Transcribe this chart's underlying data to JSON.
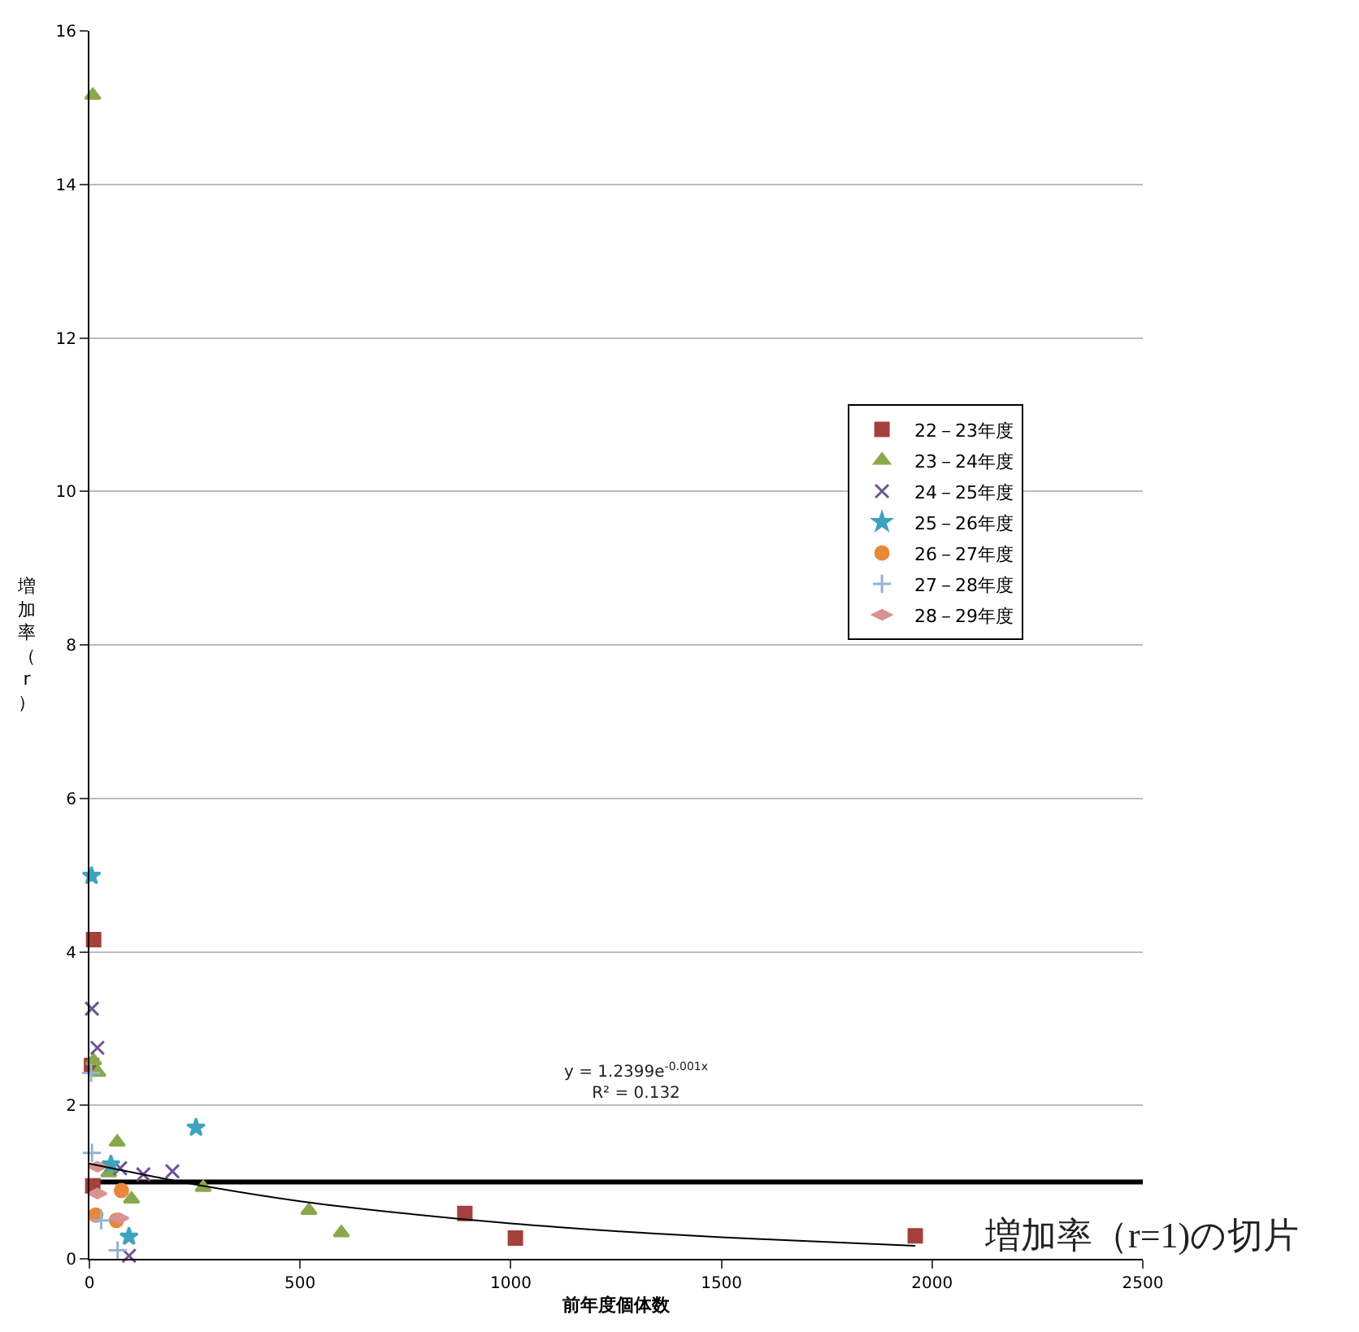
{
  "chart_data": {
    "type": "scatter",
    "xlabel": "前年度個体数",
    "ylabel": "増加率（r）",
    "xlim": [
      0,
      2500
    ],
    "xticks": [
      0,
      500,
      1000,
      1500,
      2000,
      2500
    ],
    "ylim": [
      0,
      16
    ],
    "yticks": [
      0,
      2,
      4,
      6,
      8,
      10,
      12,
      14,
      16
    ],
    "grid": "y",
    "legend": "right",
    "series": [
      {
        "name": "22－23年度",
        "color": "#a5403d",
        "marker": "square",
        "x": [
          10,
          5,
          8,
          891,
          1011,
          1960
        ],
        "values": [
          4.16,
          2.52,
          0.95,
          0.59,
          0.27,
          0.3
        ]
      },
      {
        "name": "23－24年度",
        "color": "#8aa84b",
        "marker": "triangle",
        "x": [
          8,
          10,
          20,
          66,
          46,
          100,
          270,
          521,
          598
        ],
        "values": [
          15.16,
          2.58,
          2.43,
          1.52,
          1.12,
          0.78,
          0.93,
          0.63,
          0.34
        ]
      },
      {
        "name": "24－25年度",
        "color": "#6e5493",
        "marker": "cross",
        "x": [
          6,
          19,
          73,
          128,
          197,
          94
        ],
        "values": [
          3.26,
          2.75,
          1.18,
          1.1,
          1.14,
          0.04
        ]
      },
      {
        "name": "25－26年度",
        "color": "#3ea3bd",
        "marker": "star",
        "x": [
          5,
          253,
          51,
          94
        ],
        "values": [
          4.99,
          1.71,
          1.23,
          0.29
        ]
      },
      {
        "name": "26－27年度",
        "color": "#e8883a",
        "marker": "circle",
        "x": [
          76,
          15,
          64
        ],
        "values": [
          0.89,
          0.57,
          0.5
        ]
      },
      {
        "name": "27－28年度",
        "color": "#94b2d6",
        "marker": "plus",
        "x": [
          6,
          4,
          28,
          67
        ],
        "values": [
          1.38,
          2.42,
          0.5,
          0.11
        ]
      },
      {
        "name": "28－29年度",
        "color": "#d9928f",
        "marker": "diamond",
        "x": [
          19,
          19,
          71
        ],
        "values": [
          1.2,
          0.85,
          0.53
        ]
      },
      {
        "type": "line",
        "color": "#000000",
        "marker": "none",
        "x": [
          0,
          250,
          500,
          750,
          1000,
          1250,
          1500,
          1750,
          1960
        ],
        "values": [
          1.24,
          0.97,
          0.75,
          0.59,
          0.46,
          0.36,
          0.28,
          0.22,
          0.17
        ]
      }
    ],
    "ref_lines": [
      {
        "axis": "y",
        "value": 1,
        "color": "#000000"
      }
    ],
    "annotations": [
      "y = 1.2399e$^{-0.001x}$\nR² = 0.132",
      "増加率（r=1)の切片"
    ]
  }
}
